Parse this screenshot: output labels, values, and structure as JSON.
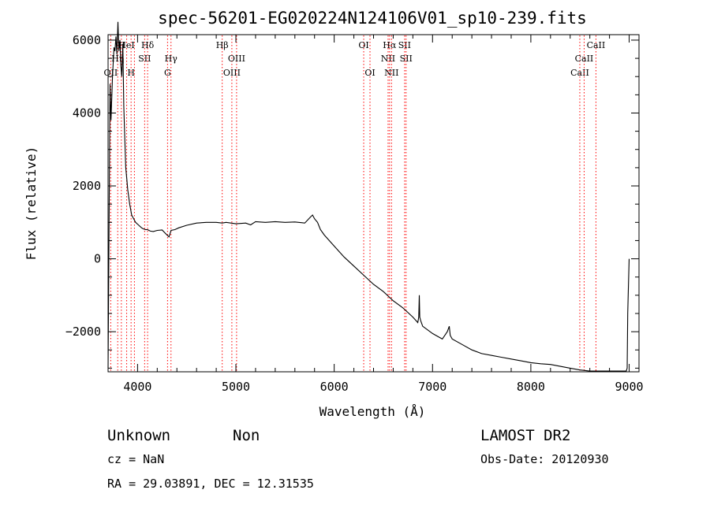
{
  "chart_data": {
    "type": "line",
    "title": "spec-56201-EG020224N124106V01_sp10-239.fits",
    "xlabel": "Wavelength (Å)",
    "ylabel": "Flux (relative)",
    "xlim": [
      3700,
      9100
    ],
    "ylim": [
      -3100,
      6150
    ],
    "x_ticks": [
      4000,
      5000,
      6000,
      7000,
      8000,
      9000
    ],
    "y_ticks": [
      -2000,
      0,
      2000,
      4000,
      6000
    ],
    "x_tick_labels": [
      "4000",
      "5000",
      "6000",
      "7000",
      "8000",
      "9000"
    ],
    "y_tick_labels": [
      "−2000",
      "0",
      "2000",
      "4000",
      "6000"
    ],
    "grid": false,
    "line_color": "#000000",
    "marker_color": "#ff0000",
    "series": [
      {
        "x": [
          3700,
          3710,
          3720,
          3730,
          3745,
          3760,
          3770,
          3780,
          3790,
          3800,
          3810,
          3820,
          3830,
          3840,
          3850,
          3860,
          3870,
          3880,
          3890,
          3900,
          3920,
          3940,
          3960,
          3980,
          4000,
          4020,
          4040,
          4060,
          4080,
          4100,
          4130,
          4160,
          4200,
          4250,
          4300,
          4320,
          4340,
          4380,
          4420,
          4500,
          4600,
          4700,
          4800,
          4860,
          4900,
          5000,
          5100,
          5150,
          5200,
          5300,
          5400,
          5500,
          5600,
          5700,
          5760,
          5780,
          5800,
          5830,
          5860,
          5900,
          6000,
          6100,
          6200,
          6300,
          6400,
          6500,
          6560,
          6600,
          6700,
          6800,
          6850,
          6860,
          6865,
          6870,
          6880,
          6900,
          7000,
          7100,
          7150,
          7170,
          7180,
          7200,
          7300,
          7400,
          7500,
          7600,
          7700,
          7800,
          7900,
          8000,
          8100,
          8200,
          8300,
          8400,
          8500,
          8600,
          8700,
          8800,
          8900,
          8960,
          8970,
          8980,
          8985,
          8990,
          9000
        ],
        "y": [
          -3000,
          800,
          4800,
          3800,
          5000,
          5800,
          5700,
          6100,
          5600,
          6500,
          5700,
          6000,
          5300,
          5000,
          5900,
          4200,
          3300,
          2500,
          2200,
          1900,
          1500,
          1200,
          1100,
          1000,
          950,
          900,
          850,
          820,
          800,
          800,
          760,
          750,
          780,
          790,
          650,
          600,
          780,
          800,
          850,
          920,
          980,
          1000,
          1000,
          980,
          1000,
          960,
          980,
          930,
          1020,
          1000,
          1020,
          1000,
          1010,
          980,
          1150,
          1200,
          1100,
          1000,
          800,
          650,
          350,
          50,
          -200,
          -450,
          -700,
          -900,
          -1050,
          -1150,
          -1350,
          -1600,
          -1750,
          -1600,
          -1000,
          -1600,
          -1700,
          -1850,
          -2050,
          -2200,
          -2000,
          -1850,
          -2100,
          -2200,
          -2350,
          -2500,
          -2600,
          -2650,
          -2700,
          -2750,
          -2800,
          -2850,
          -2880,
          -2900,
          -2950,
          -3000,
          -3050,
          -3080,
          -3080,
          -3080,
          -3080,
          -3080,
          -3080,
          -3000,
          -1500,
          -1000,
          0
        ]
      }
    ],
    "line_markers": [
      {
        "w": 3727,
        "label": "OII",
        "row": 2
      },
      {
        "w": 3798,
        "label": "Hη",
        "row": 1
      },
      {
        "w": 3835,
        "label": "H",
        "row": 0
      },
      {
        "w": 3889,
        "label": "HeI",
        "row": 0
      },
      {
        "w": 3934,
        "label": "H",
        "row": 2
      },
      {
        "w": 3968,
        "label": "",
        "row": 2
      },
      {
        "w": 4072,
        "label": "SII",
        "row": 1
      },
      {
        "w": 4102,
        "label": "Hδ",
        "row": 0
      },
      {
        "w": 4305,
        "label": "G",
        "row": 2
      },
      {
        "w": 4340,
        "label": "Hγ",
        "row": 1
      },
      {
        "w": 4861,
        "label": "Hβ",
        "row": 0
      },
      {
        "w": 4959,
        "label": "OIII",
        "row": 2
      },
      {
        "w": 5007,
        "label": "OIII",
        "row": 1
      },
      {
        "w": 6300,
        "label": "OI",
        "row": 0
      },
      {
        "w": 6364,
        "label": "OI",
        "row": 2
      },
      {
        "w": 6548,
        "label": "NII",
        "row": 1
      },
      {
        "w": 6563,
        "label": "Hα",
        "row": 0
      },
      {
        "w": 6583,
        "label": "NII",
        "row": 2
      },
      {
        "w": 6716,
        "label": "SII",
        "row": 0
      },
      {
        "w": 6731,
        "label": "SII",
        "row": 1
      },
      {
        "w": 8498,
        "label": "CaII",
        "row": 2
      },
      {
        "w": 8542,
        "label": "CaII",
        "row": 1
      },
      {
        "w": 8662,
        "label": "CaII",
        "row": 0
      }
    ]
  },
  "info": {
    "class": "Unknown",
    "subclass": "Non",
    "survey": "LAMOST DR2",
    "cz": "cz = NaN",
    "obs_date": "Obs-Date: 20120930",
    "coords": "RA =  29.03891, DEC =  12.31535"
  }
}
